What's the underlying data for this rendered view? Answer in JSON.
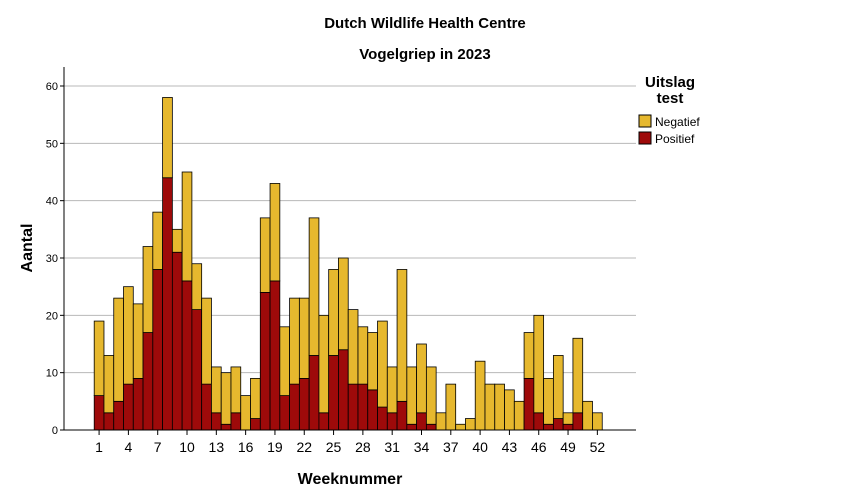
{
  "chart_data": {
    "type": "bar",
    "stacked": true,
    "title": "Dutch Wildlife Health Centre",
    "subtitle": "Vogelgriep in 2023",
    "xlabel": "Weeknummer",
    "ylabel": "Aantal",
    "ylim": [
      0,
      63
    ],
    "yticks": [
      0,
      10,
      20,
      30,
      40,
      50,
      60
    ],
    "grid": true,
    "legend": {
      "title": "Uitslag test",
      "title_lines": [
        "Uitslag",
        "test"
      ],
      "position": "right"
    },
    "categories": [
      1,
      2,
      3,
      4,
      5,
      6,
      7,
      8,
      9,
      10,
      11,
      12,
      13,
      14,
      15,
      16,
      17,
      18,
      19,
      20,
      21,
      22,
      23,
      24,
      25,
      26,
      27,
      28,
      29,
      30,
      31,
      32,
      33,
      34,
      35,
      36,
      37,
      38,
      39,
      40,
      41,
      42,
      43,
      44,
      45,
      46,
      47,
      48,
      49,
      50,
      51,
      52
    ],
    "xtick_labels": [
      "1",
      "4",
      "7",
      "10",
      "13",
      "16",
      "19",
      "22",
      "25",
      "28",
      "31",
      "34",
      "37",
      "40",
      "43",
      "46",
      "49",
      "52"
    ],
    "series": [
      {
        "name": "Negatief",
        "color": "#E6B82E",
        "values": [
          13,
          10,
          18,
          17,
          13,
          15,
          10,
          14,
          4,
          19,
          8,
          15,
          8,
          9,
          8,
          6,
          7,
          13,
          17,
          12,
          15,
          14,
          24,
          17,
          15,
          16,
          13,
          10,
          10,
          15,
          8,
          23,
          10,
          12,
          10,
          3,
          8,
          1,
          2,
          12,
          8,
          8,
          7,
          5,
          8,
          17,
          8,
          11,
          2,
          13,
          5,
          3
        ]
      },
      {
        "name": "Positief",
        "color": "#9E0A0A",
        "values": [
          6,
          3,
          5,
          8,
          9,
          17,
          28,
          44,
          31,
          26,
          21,
          8,
          3,
          1,
          3,
          0,
          2,
          24,
          26,
          6,
          8,
          9,
          13,
          3,
          13,
          14,
          8,
          8,
          7,
          4,
          3,
          5,
          1,
          3,
          1,
          0,
          0,
          0,
          0,
          0,
          0,
          0,
          0,
          0,
          9,
          3,
          1,
          2,
          1,
          3,
          0,
          0
        ]
      }
    ]
  }
}
